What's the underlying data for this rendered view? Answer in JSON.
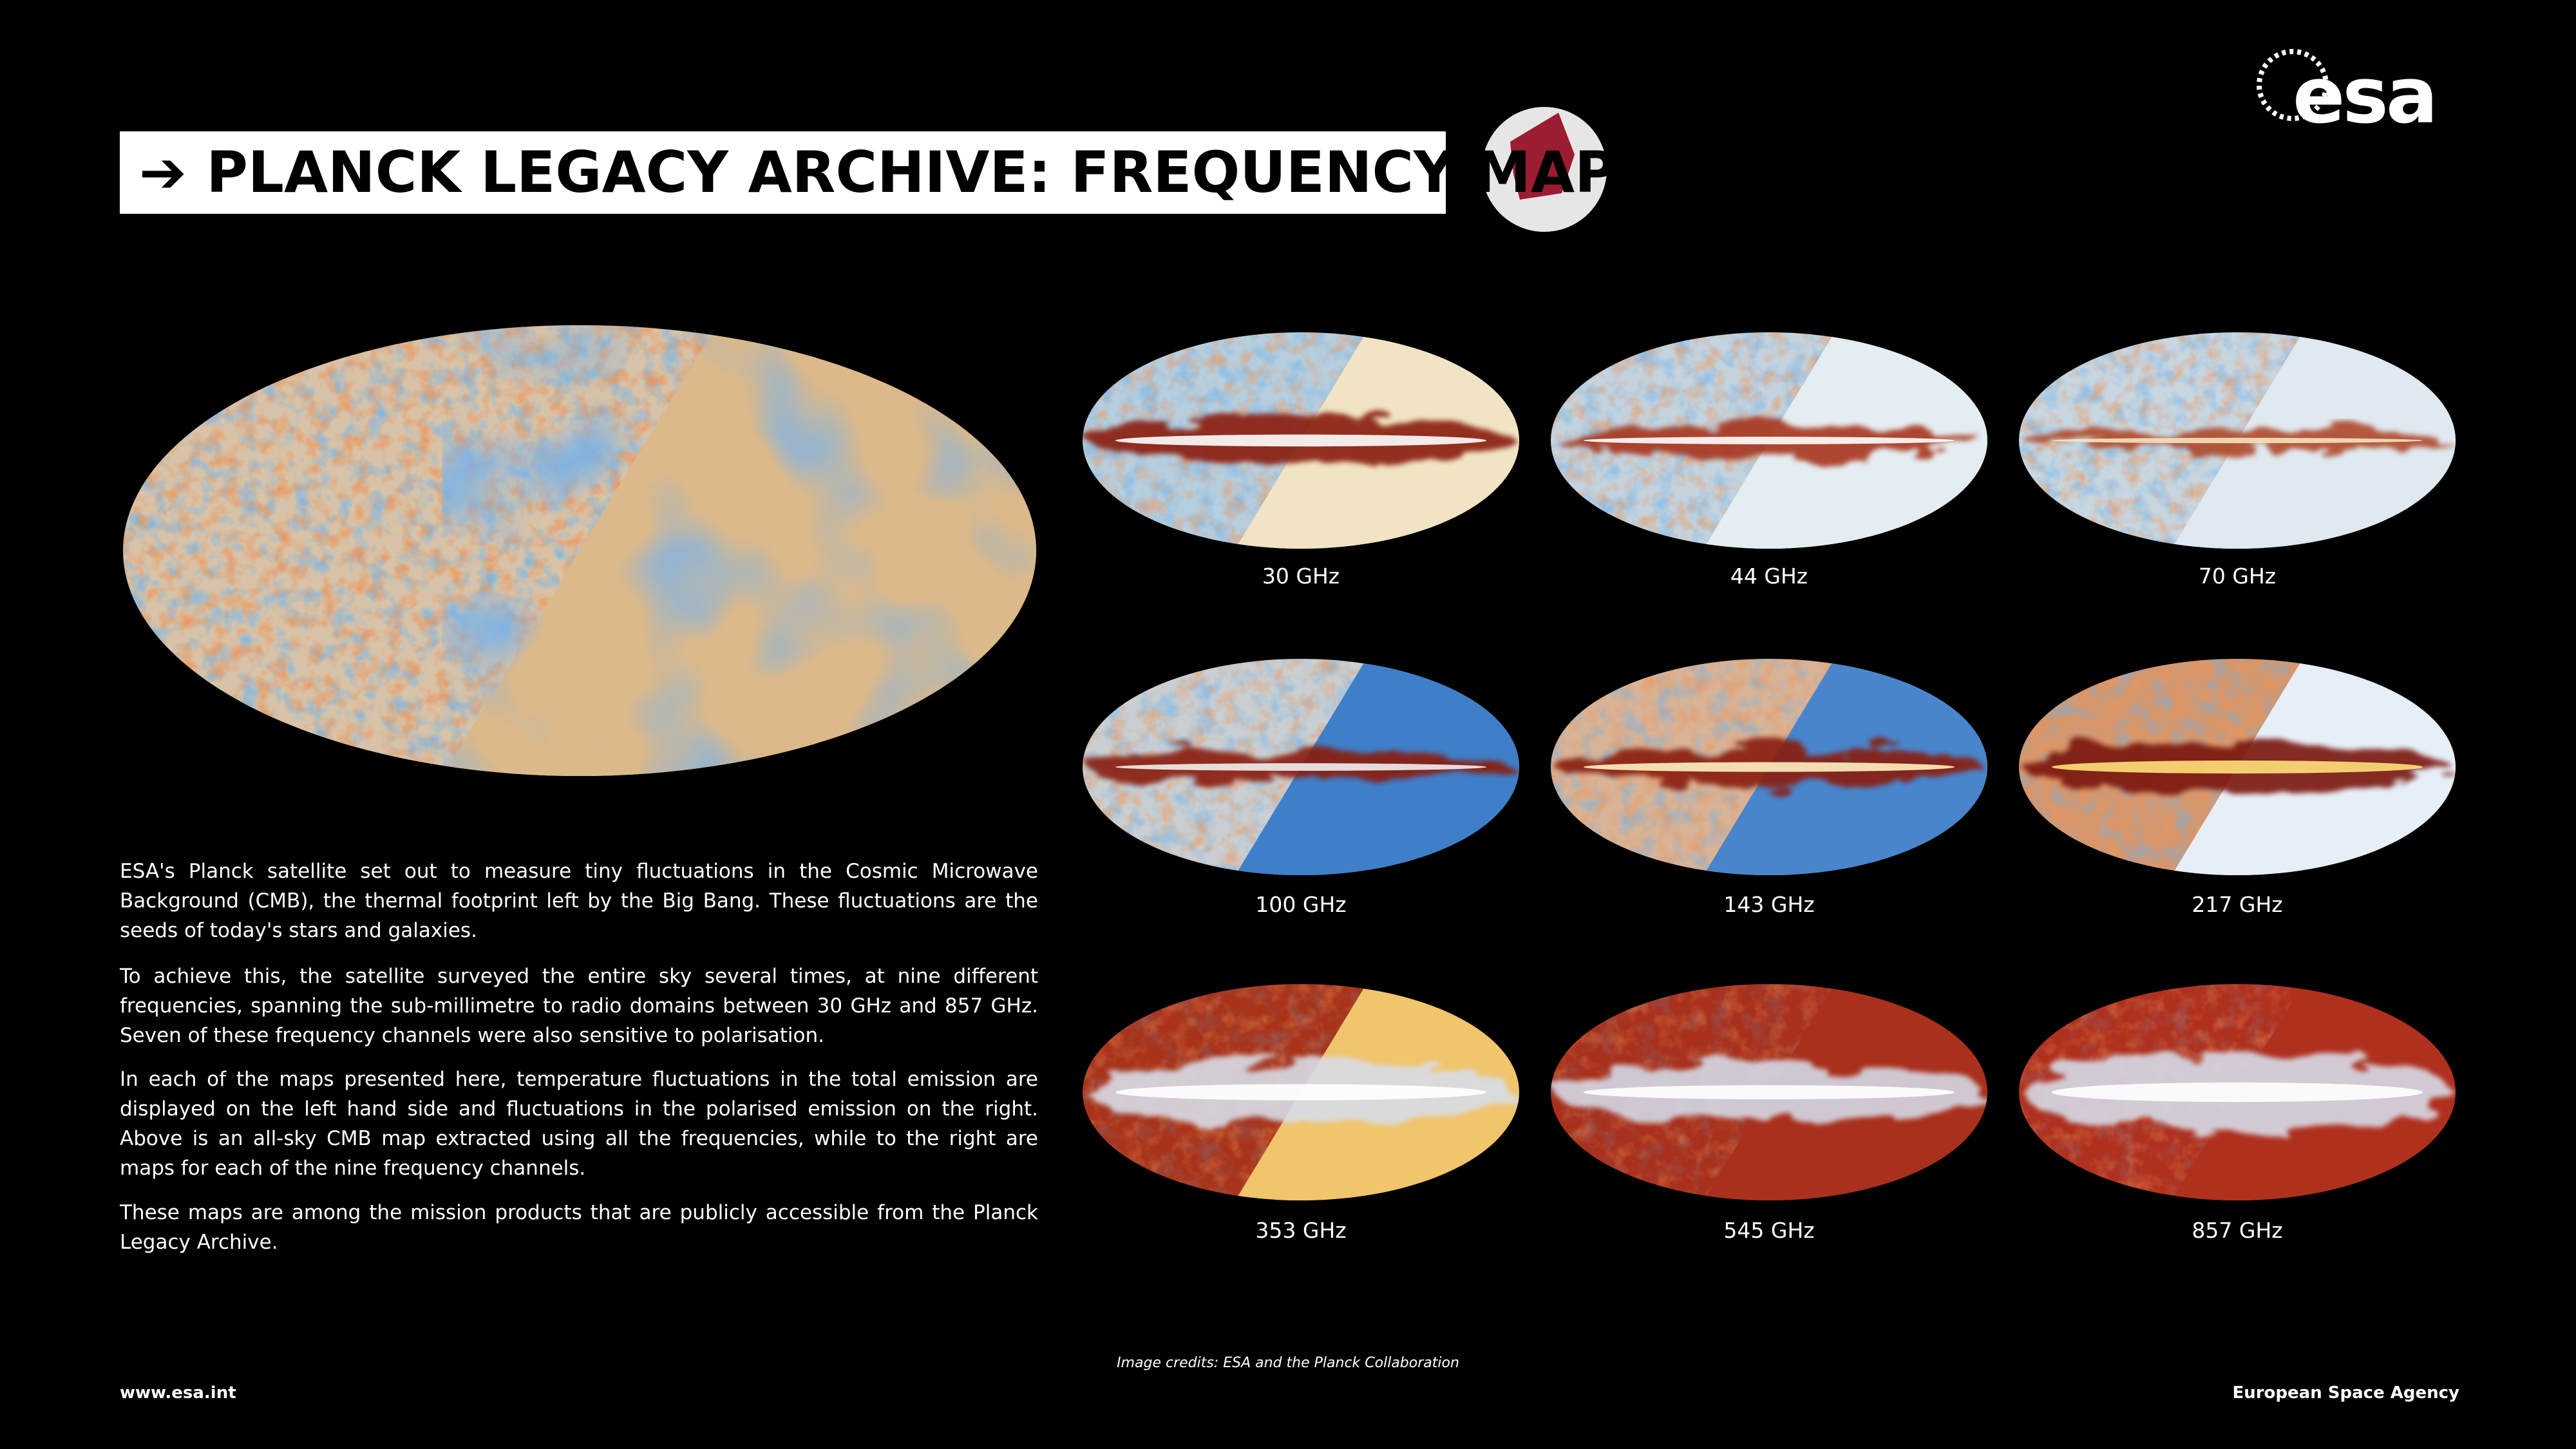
{
  "header": {
    "title": "➔ PLANCK LEGACY ARCHIVE: FREQUENCY MAPS",
    "logo": "esa"
  },
  "maps": [
    {
      "label": "30 GHz"
    },
    {
      "label": "44 GHz"
    },
    {
      "label": "70 GHz"
    },
    {
      "label": "100 GHz"
    },
    {
      "label": "143 GHz"
    },
    {
      "label": "217 GHz"
    },
    {
      "label": "353 GHz"
    },
    {
      "label": "545 GHz"
    },
    {
      "label": "857 GHz"
    }
  ],
  "paragraphs": [
    "ESA's Planck satellite set out to measure tiny fluctuations in the Cosmic Microwave Background (CMB), the thermal footprint left by the Big Bang. These fluctuations are the seeds of today's stars and galaxies.",
    "To achieve this, the satellite surveyed the entire sky several times, at nine different frequencies, spanning the sub-millimetre to radio domains between 30 GHz and 857 GHz. Seven of these frequency channels were also sensitive to polarisation.",
    "In each of the maps presented here, temperature fluctuations in the total emission are displayed on the left hand side and fluctuations in the polarised emission on the right. Above is an all-sky CMB map extracted using all the frequencies, while to the right are maps for each of the nine frequency channels.",
    "These maps are among the mission products that are publicly accessible from the Planck Legacy Archive."
  ],
  "footer": {
    "website": "www.esa.int",
    "credits": "Image credits: ESA and the Planck Collaboration",
    "agency": "European Space Agency"
  }
}
